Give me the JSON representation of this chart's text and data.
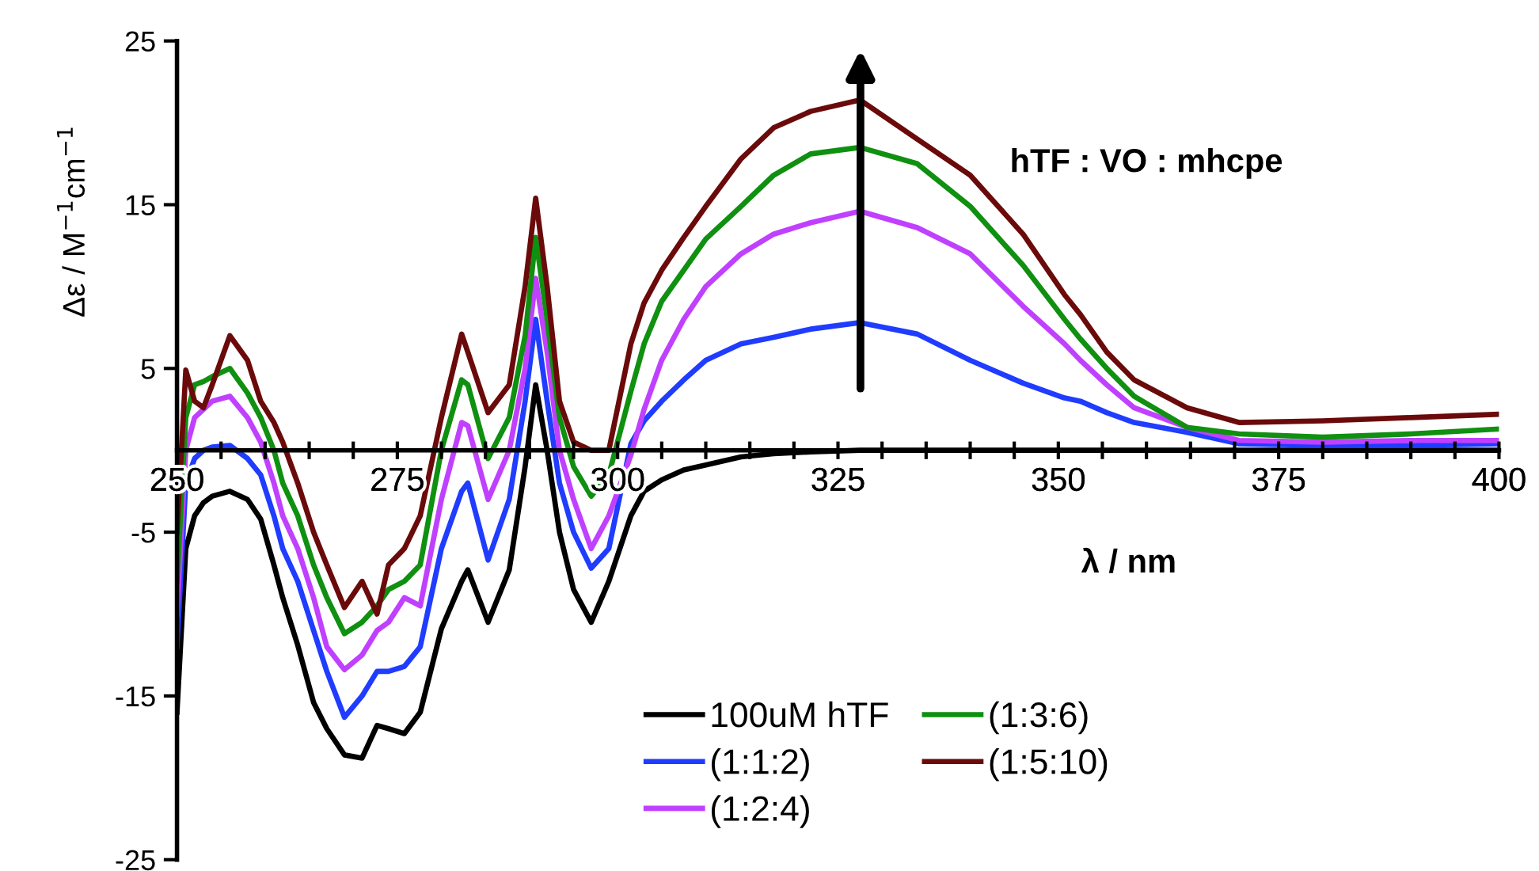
{
  "chart_data": {
    "type": "line",
    "xlabel": "λ / nm",
    "ylabel": "Δε / M$^{−1}$cm$^{−1}$",
    "annotations": [
      "hTF : VO : mhcpe"
    ],
    "x": [
      250,
      251,
      252,
      253,
      254,
      256,
      258,
      259.5,
      261,
      262,
      263.7,
      265.5,
      267,
      269,
      271,
      272.7,
      274,
      275.8,
      277.6,
      280,
      282.3,
      283,
      285.3,
      287.7,
      289.5,
      290.7,
      292,
      293.4,
      295,
      297,
      299,
      301.5,
      303,
      305,
      307.5,
      310,
      314,
      317.7,
      321.9,
      327.5,
      334,
      340,
      346,
      350.7,
      352.5,
      355.5,
      358.6,
      364.6,
      370.5,
      380,
      390,
      400
    ],
    "series": [
      {
        "name": "100uM hTF",
        "color": "#000000",
        "values": [
          -16,
          -6,
          -4,
          -3.2,
          -2.8,
          -2.5,
          -3,
          -4.2,
          -7,
          -9,
          -11.9,
          -15.4,
          -17,
          -18.6,
          -18.8,
          -16.8,
          -17,
          -17.3,
          -16,
          -10.9,
          -8,
          -7.3,
          -10.5,
          -7.3,
          -1,
          4,
          0,
          -5,
          -8.5,
          -10.5,
          -8,
          -4,
          -2.5,
          -1.8,
          -1.2,
          -0.9,
          -0.4,
          -0.2,
          -0.1,
          0,
          0,
          0,
          0,
          0,
          0,
          0,
          0,
          0,
          0,
          0,
          0,
          0
        ]
      },
      {
        "name": "(1:1:2)",
        "color": "#1f3cff",
        "values": [
          -12,
          -2,
          -0.5,
          0,
          0.2,
          0.3,
          -0.5,
          -1.5,
          -4,
          -6,
          -8,
          -11,
          -13.5,
          -16.3,
          -15,
          -13.5,
          -13.5,
          -13.2,
          -12,
          -6,
          -2.5,
          -2,
          -6.7,
          -3,
          3,
          8,
          3,
          -2,
          -5,
          -7.2,
          -6,
          0.4,
          1.8,
          3,
          4.3,
          5.5,
          6.5,
          6.9,
          7.4,
          7.8,
          7.1,
          5.5,
          4.1,
          3.2,
          3,
          2.3,
          1.7,
          1.1,
          0.4,
          0.3,
          0.3,
          0.4
        ]
      },
      {
        "name": "(1:2:4)",
        "color": "#c040ff",
        "values": [
          -10,
          0,
          2,
          2.5,
          3,
          3.3,
          2,
          0.5,
          -2,
          -4,
          -6,
          -9,
          -12,
          -13.4,
          -12.5,
          -11,
          -10.5,
          -9,
          -9.5,
          -3,
          1.7,
          1.5,
          -3,
          0,
          5,
          10.5,
          6,
          0,
          -3,
          -6,
          -4,
          -0.3,
          2.5,
          5.5,
          8,
          10,
          12,
          13.2,
          13.9,
          14.6,
          13.6,
          12,
          8.8,
          6.5,
          5.5,
          4,
          2.6,
          1.4,
          0.6,
          0.5,
          0.6,
          0.6
        ]
      },
      {
        "name": "(1:3:6)",
        "color": "#109010",
        "values": [
          -8,
          2,
          4,
          4.2,
          4.5,
          5,
          3.5,
          2,
          0,
          -2,
          -4,
          -7,
          -9,
          -11.2,
          -10.5,
          -9.5,
          -8.5,
          -8,
          -7,
          0,
          4.3,
          4,
          -0.5,
          2,
          7,
          13,
          8,
          2,
          -1,
          -2.8,
          -1.5,
          3.6,
          6.5,
          9.1,
          11,
          12.9,
          14.9,
          16.8,
          18.1,
          18.5,
          17.5,
          14.9,
          11.3,
          8,
          6.8,
          5,
          3.3,
          1.4,
          1,
          0.8,
          1,
          1.3
        ]
      },
      {
        "name": "(1:5:10)",
        "color": "#6b0a0a",
        "values": [
          -5,
          4.9,
          3,
          2.6,
          4,
          7,
          5.5,
          3,
          1.7,
          0.5,
          -2,
          -5,
          -7,
          -9.6,
          -8,
          -10,
          -7,
          -6,
          -4,
          2,
          7.1,
          6,
          2.3,
          4,
          10,
          15.4,
          10,
          3,
          0.5,
          0,
          0,
          6.5,
          9,
          11,
          13,
          14.9,
          17.8,
          19.7,
          20.7,
          21.4,
          19,
          16.8,
          13.2,
          9.5,
          8.3,
          6,
          4.3,
          2.6,
          1.7,
          1.8,
          2,
          2.2
        ]
      }
    ],
    "xlim": [
      250,
      400
    ],
    "ylim": [
      -25,
      25
    ],
    "xticks": [
      250,
      {
        "value": 255,
        "label": null
      },
      {
        "value": 260,
        "label": null
      },
      {
        "value": 265,
        "label": null
      },
      {
        "value": 270,
        "label": null
      },
      275,
      {
        "value": 280,
        "label": null
      },
      {
        "value": 285,
        "label": null
      },
      {
        "value": 290,
        "label": null
      },
      {
        "value": 295,
        "label": null
      },
      300,
      {
        "value": 305,
        "label": null
      },
      {
        "value": 310,
        "label": null
      },
      {
        "value": 315,
        "label": null
      },
      {
        "value": 320,
        "label": null
      },
      325,
      {
        "value": 330,
        "label": null
      },
      {
        "value": 335,
        "label": null
      },
      {
        "value": 340,
        "label": null
      },
      {
        "value": 345,
        "label": null
      },
      350,
      {
        "value": 355,
        "label": null
      },
      {
        "value": 360,
        "label": null
      },
      {
        "value": 365,
        "label": null
      },
      {
        "value": 370,
        "label": null
      },
      375,
      {
        "value": 380,
        "label": null
      },
      {
        "value": 385,
        "label": null
      },
      {
        "value": 390,
        "label": null
      },
      {
        "value": 395,
        "label": null
      },
      400
    ],
    "yticks": [
      -25,
      -15,
      -5,
      5,
      15,
      25
    ],
    "grid": false,
    "legend": "bottom",
    "line_style": "solid"
  }
}
